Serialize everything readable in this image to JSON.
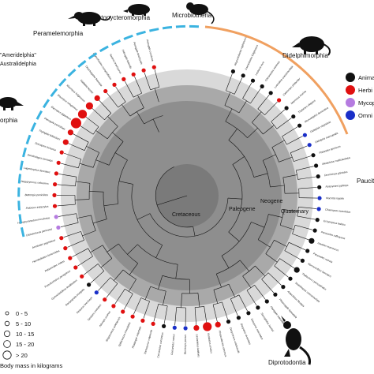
{
  "figure": {
    "eras": {
      "cretaceous": "Cretaceous",
      "paleogene": "Paleogene",
      "neogene": "Neogene",
      "quaternary": "Quaternary"
    },
    "orders": {
      "peramelemorphia": "Peramelemorphia",
      "notoryctemorphia": "Notonycteromorphia",
      "microbiotheria": "Microbiotheria",
      "didelphimorphia": "Didelphimorphia",
      "dasyuromorphia_partial": "orphia",
      "paucituberculata_partial": "Paucit",
      "diprotodontia": "Diprotodontia"
    },
    "clades": {
      "ameridelphia": "\"Ameridelphia\"",
      "australidelphia": "Australidelphia"
    },
    "diet_legend": {
      "animal": "Anima",
      "herbivore": "Herbi",
      "mycophagy": "Mycop",
      "omnivore": "Omni"
    },
    "size_legend": {
      "items": [
        "0 - 5",
        "5 - 10",
        "10 - 15",
        "15 - 20",
        "> 20"
      ],
      "caption": "Body mass in kilograms"
    },
    "colors": {
      "animal": "#111111",
      "herbivore": "#e01010",
      "mycophagy": "#b57be0",
      "omnivore": "#1a2fc8",
      "american_arc": "#3bb3e0",
      "didelphimorphia_arc": "#f0a060",
      "ring_outer": "#d9d9d9",
      "ring_mid": "#a8a8a8",
      "ring_inner": "#8a8a8a",
      "core": "#7c7c7c"
    },
    "taxa": [
      {
        "name": "Rhyncholestes raphanurus",
        "diet": "animal",
        "mass": 1
      },
      {
        "name": "Caenolestes fuliginosus",
        "diet": "animal",
        "mass": 1
      },
      {
        "name": "Lestoros inca",
        "diet": "animal",
        "mass": 1
      },
      {
        "name": "Chironectes minimus",
        "diet": "animal",
        "mass": 1
      },
      {
        "name": "Lutreolina crassicaudata",
        "diet": "animal",
        "mass": 1
      },
      {
        "name": "Caluromys philander",
        "diet": "herbivore",
        "mass": 1
      },
      {
        "name": "Marmosa murina",
        "diet": "animal",
        "mass": 1
      },
      {
        "name": "Thylamys elegans",
        "diet": "animal",
        "mass": 1
      },
      {
        "name": "Monodelphis domestica",
        "diet": "animal",
        "mass": 1
      },
      {
        "name": "Didelphis virginiana",
        "diet": "omnivore",
        "mass": 1
      },
      {
        "name": "Didelphis marsupialis",
        "diet": "omnivore",
        "mass": 1
      },
      {
        "name": "Philander opossum",
        "diet": "animal",
        "mass": 1
      },
      {
        "name": "Metachirus nudicaudatus",
        "diet": "animal",
        "mass": 1
      },
      {
        "name": "Dromiciops gliroides",
        "diet": "animal",
        "mass": 1
      },
      {
        "name": "Notoryctes typhlops",
        "diet": "animal",
        "mass": 1
      },
      {
        "name": "Macrotis lagotis",
        "diet": "omnivore",
        "mass": 1
      },
      {
        "name": "Chaeropus ecaudatus",
        "diet": "omnivore",
        "mass": 1
      },
      {
        "name": "Echymipera kalubu",
        "diet": "animal",
        "mass": 1
      },
      {
        "name": "Peroryctes raffrayana",
        "diet": "animal",
        "mass": 1
      },
      {
        "name": "Isoodon macrourus",
        "diet": "animal",
        "mass": 2
      },
      {
        "name": "Perameles nasuta",
        "diet": "animal",
        "mass": 1
      },
      {
        "name": "Myrmecobius fasciatus",
        "diet": "animal",
        "mass": 1
      },
      {
        "name": "Thylacinus cynocephalus",
        "diet": "animal",
        "mass": 2
      },
      {
        "name": "Sminthopsis crassicaudata",
        "diet": "animal",
        "mass": 1
      },
      {
        "name": "Antechinus flavipes",
        "diet": "animal",
        "mass": 1
      },
      {
        "name": "Phascogale tapoatafa",
        "diet": "animal",
        "mass": 1
      },
      {
        "name": "Planigale maculata",
        "diet": "animal",
        "mass": 1
      },
      {
        "name": "Sarcophilus harrisii",
        "diet": "animal",
        "mass": 1
      },
      {
        "name": "Dasyurus maculatus",
        "diet": "animal",
        "mass": 1
      },
      {
        "name": "Dasyurus viverrinus",
        "diet": "animal",
        "mass": 1
      },
      {
        "name": "Dasycercus cristicauda",
        "diet": "animal",
        "mass": 1
      },
      {
        "name": "Phascolarctos cinereus",
        "diet": "herbivore",
        "mass": 2
      },
      {
        "name": "Vombatus ursinus",
        "diet": "herbivore",
        "mass": 4
      },
      {
        "name": "Lasiorhinus latifrons",
        "diet": "herbivore",
        "mass": 2
      },
      {
        "name": "Burramys parvus",
        "diet": "omnivore",
        "mass": 1
      },
      {
        "name": "Cercartetus nanus",
        "diet": "omnivore",
        "mass": 1
      },
      {
        "name": "Cercartetus concinnus",
        "diet": "animal",
        "mass": 1
      },
      {
        "name": "Trichosurus vulpecula",
        "diet": "herbivore",
        "mass": 1
      },
      {
        "name": "Phalanger orientalis",
        "diet": "herbivore",
        "mass": 1
      },
      {
        "name": "Spilocuscus maculatus",
        "diet": "herbivore",
        "mass": 1
      },
      {
        "name": "Strigocuscus celebensis",
        "diet": "herbivore",
        "mass": 1
      },
      {
        "name": "Ailurops ursinus",
        "diet": "herbivore",
        "mass": 1
      },
      {
        "name": "Tarsipes rostratus",
        "diet": "herbivore",
        "mass": 1
      },
      {
        "name": "Petaurus breviceps",
        "diet": "omnivore",
        "mass": 1
      },
      {
        "name": "Dactylopsila trivirgata",
        "diet": "animal",
        "mass": 1
      },
      {
        "name": "Gymnobelideus leadbeateri",
        "diet": "herbivore",
        "mass": 1
      },
      {
        "name": "Pseudocheirus peregrinus",
        "diet": "herbivore",
        "mass": 1
      },
      {
        "name": "Petauroides volans",
        "diet": "herbivore",
        "mass": 1
      },
      {
        "name": "Hemibelideus lemuroides",
        "diet": "herbivore",
        "mass": 1
      },
      {
        "name": "Acrobates pygmaeus",
        "diet": "herbivore",
        "mass": 1
      },
      {
        "name": "Distoechurus pennatus",
        "diet": "mycophagy",
        "mass": 1
      },
      {
        "name": "Hypsiprymnodon moschatus",
        "diet": "mycophagy",
        "mass": 1
      },
      {
        "name": "Potorous tridactylus",
        "diet": "herbivore",
        "mass": 1
      },
      {
        "name": "Bettongia penicillata",
        "diet": "herbivore",
        "mass": 1
      },
      {
        "name": "Aepyprymnus rufescens",
        "diet": "herbivore",
        "mass": 1
      },
      {
        "name": "Lagostrophus fasciatus",
        "diet": "herbivore",
        "mass": 1
      },
      {
        "name": "Dendrolagus lumholtzi",
        "diet": "herbivore",
        "mass": 1
      },
      {
        "name": "Dorcopsis luctuosa",
        "diet": "herbivore",
        "mass": 1
      },
      {
        "name": "Thylogale billardierii",
        "diet": "herbivore",
        "mass": 2
      },
      {
        "name": "Petrogale penicillata",
        "diet": "herbivore",
        "mass": 2
      },
      {
        "name": "Macropus giganteus",
        "diet": "herbivore",
        "mass": 5
      },
      {
        "name": "Macropus rufogriseus",
        "diet": "herbivore",
        "mass": 4
      },
      {
        "name": "Macropus fuliginosus",
        "diet": "herbivore",
        "mass": 3
      },
      {
        "name": "Wallabia bicolor",
        "diet": "herbivore",
        "mass": 2
      },
      {
        "name": "Onychogalea fraenata",
        "diet": "herbivore",
        "mass": 1
      },
      {
        "name": "Lagorchestes conspicillatus",
        "diet": "herbivore",
        "mass": 1
      },
      {
        "name": "Setonix brachyurus",
        "diet": "herbivore",
        "mass": 1
      },
      {
        "name": "Petrogale lateralis",
        "diet": "herbivore",
        "mass": 1
      },
      {
        "name": "Petrogale brachyotis",
        "diet": "herbivore",
        "mass": 1
      },
      {
        "name": "Petrogale concinna",
        "diet": "herbivore",
        "mass": 1
      }
    ]
  }
}
